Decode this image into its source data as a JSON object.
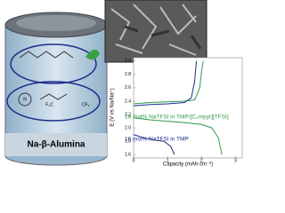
{
  "battery_label": "Na-β-Alumina",
  "molecule_labels": [
    "F₃C",
    "CF₃",
    "N"
  ],
  "chart_data": {
    "type": "line",
    "x_label": "Capacity (mAh cm⁻²)",
    "y_label": "E (V vs Na/Na⁺)",
    "xlim": [
      0,
      3.2
    ],
    "ylim": [
      1.55,
      3.05
    ],
    "xticks": [
      0,
      1,
      2,
      3
    ],
    "yticks": [
      {
        "value": 1.6,
        "label": "1.6"
      },
      {
        "value": 1.8,
        "label": "1.8"
      },
      {
        "value": 2.0,
        "label": "2.0"
      },
      {
        "value": 2.2,
        "label": "2.2"
      },
      {
        "value": 2.4,
        "label": "2.4"
      },
      {
        "value": 2.6,
        "label": "2.6"
      },
      {
        "value": 2.8,
        "label": "2.8"
      },
      {
        "value": 3.0,
        "label": "3.0"
      }
    ],
    "series": [
      {
        "name": "16 mol% NaTFSI in TMP/[C₄mpyr][TFSI]",
        "color": "#2e9a4a",
        "x": [
          0,
          0.5,
          1,
          1.5,
          1.8,
          1.95,
          2.0,
          2.05,
          null,
          0,
          0.5,
          1,
          1.5,
          2,
          2.3,
          2.5,
          2.6
        ],
        "values": [
          2.36,
          2.38,
          2.39,
          2.4,
          2.42,
          2.6,
          2.85,
          3.0,
          null,
          2.15,
          2.12,
          2.1,
          2.08,
          2.05,
          2.0,
          1.85,
          1.6
        ]
      },
      {
        "name": "16 mol% NaTFSI in TMP",
        "color": "#1c2e8a",
        "x": [
          0,
          0.5,
          1,
          1.5,
          1.7,
          1.8,
          1.85,
          null,
          0,
          0.3,
          0.6,
          0.9,
          1.1,
          1.2
        ],
        "values": [
          2.33,
          2.35,
          2.36,
          2.38,
          2.45,
          2.7,
          3.0,
          null,
          1.9,
          1.85,
          1.82,
          1.8,
          1.72,
          1.6
        ]
      }
    ]
  }
}
